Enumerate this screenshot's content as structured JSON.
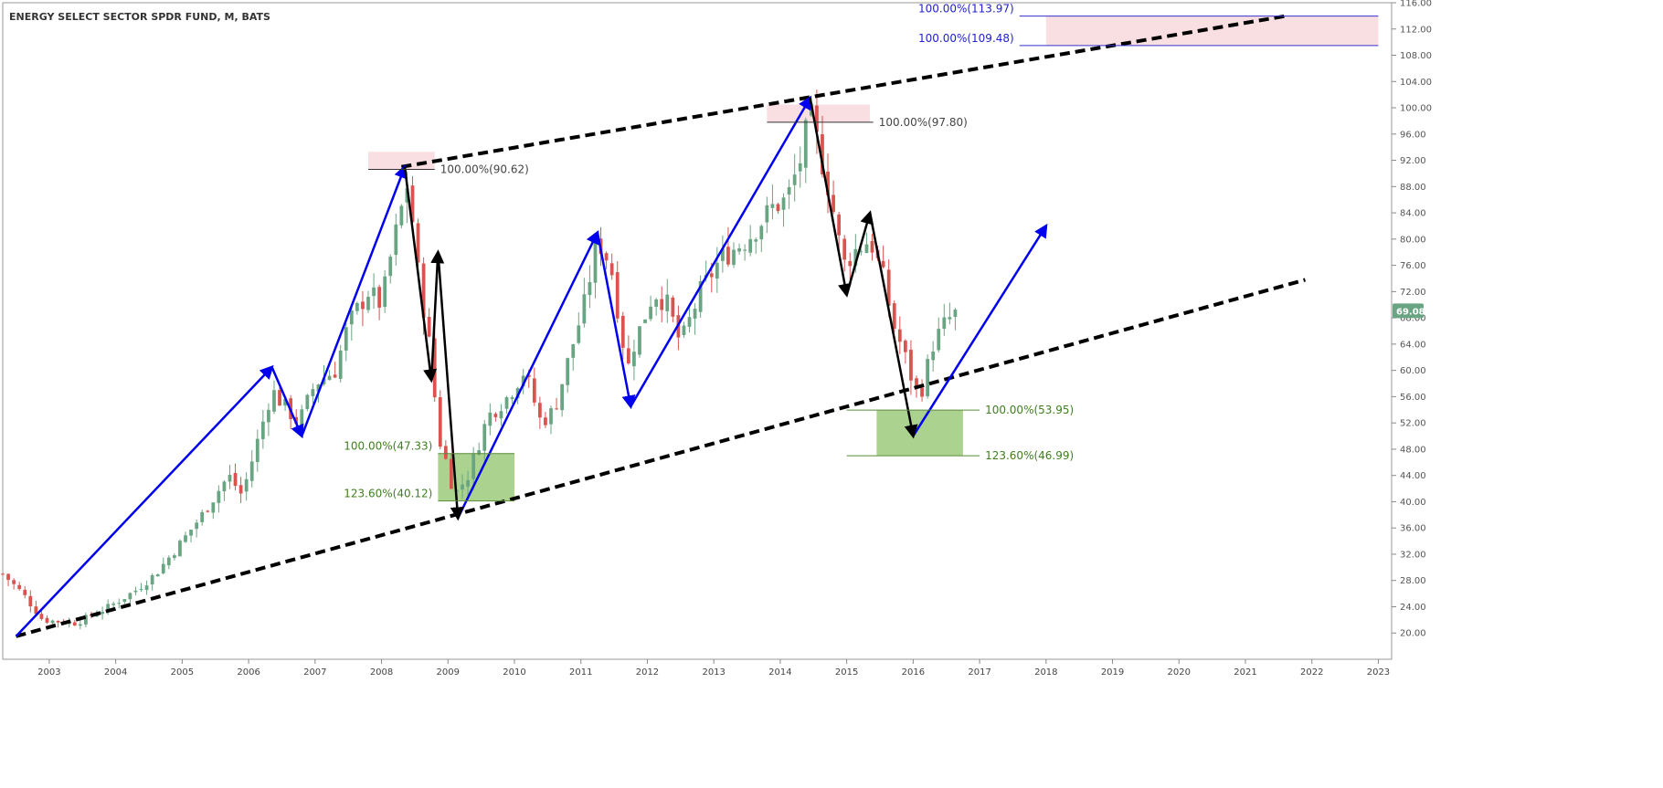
{
  "title": "ENERGY SELECT SECTOR SPDR FUND, M, BATS",
  "colors": {
    "up": "#6aa583",
    "down": "#d9534f",
    "wave_blue": "#0000ee",
    "wave_black": "#000000",
    "trend": "#000000",
    "zone_pink": "#f9d9dd",
    "zone_green": "#8fc46a",
    "fib_green_text": "#3f7f1f",
    "fib_blue_text": "#2222cc",
    "fib_dark_text": "#444444",
    "last_price_bg": "#6aa583"
  },
  "chart_data": {
    "type": "candlestick",
    "title": "ENERGY SELECT SECTOR SPDR FUND, M, BATS",
    "interval": "M",
    "exchange": "BATS",
    "x_axis": {
      "type": "time",
      "range": [
        2002.3,
        2023.2
      ],
      "ticks": [
        "2003",
        "2004",
        "2005",
        "2006",
        "2007",
        "2008",
        "2009",
        "2010",
        "2011",
        "2012",
        "2013",
        "2014",
        "2015",
        "2016",
        "2017",
        "2018",
        "2019",
        "2020",
        "2021",
        "2022",
        "2023"
      ]
    },
    "y_axis": {
      "range": [
        16,
        116
      ],
      "position": "right",
      "ticks": [
        "116.00",
        "112.00",
        "108.00",
        "104.00",
        "100.00",
        "96.00",
        "92.00",
        "88.00",
        "84.00",
        "80.00",
        "76.00",
        "72.00",
        "68.00",
        "64.00",
        "60.00",
        "56.00",
        "52.00",
        "48.00",
        "44.00",
        "40.00",
        "36.00",
        "32.00",
        "28.00",
        "24.00",
        "20.00"
      ]
    },
    "last_price": "69.08",
    "anchors": [
      [
        2002.3,
        29.0
      ],
      [
        2002.6,
        26.0
      ],
      [
        2002.9,
        22.0
      ],
      [
        2003.4,
        21.5
      ],
      [
        2003.9,
        24.0
      ],
      [
        2004.3,
        26.5
      ],
      [
        2004.6,
        29.0
      ],
      [
        2005.0,
        34.0
      ],
      [
        2005.3,
        38.0
      ],
      [
        2005.7,
        44.0
      ],
      [
        2005.9,
        41.0
      ],
      [
        2006.1,
        48.0
      ],
      [
        2006.35,
        57.0
      ],
      [
        2006.5,
        55.0
      ],
      [
        2006.75,
        52.0
      ],
      [
        2007.0,
        58.0
      ],
      [
        2007.3,
        60.0
      ],
      [
        2007.5,
        67.0
      ],
      [
        2007.8,
        72.0
      ],
      [
        2008.0,
        70.0
      ],
      [
        2008.15,
        78.0
      ],
      [
        2008.4,
        89.0
      ],
      [
        2008.55,
        75.0
      ],
      [
        2008.75,
        62.0
      ],
      [
        2008.85,
        50.0
      ],
      [
        2008.95,
        47.0
      ],
      [
        2009.1,
        41.0
      ],
      [
        2009.3,
        44.0
      ],
      [
        2009.6,
        53.0
      ],
      [
        2009.9,
        56.0
      ],
      [
        2010.15,
        60.0
      ],
      [
        2010.4,
        52.0
      ],
      [
        2010.6,
        54.0
      ],
      [
        2010.85,
        63.0
      ],
      [
        2011.05,
        70.0
      ],
      [
        2011.25,
        80.0
      ],
      [
        2011.45,
        76.0
      ],
      [
        2011.7,
        60.0
      ],
      [
        2011.8,
        64.0
      ],
      [
        2012.1,
        72.0
      ],
      [
        2012.3,
        70.0
      ],
      [
        2012.5,
        64.0
      ],
      [
        2012.8,
        72.0
      ],
      [
        2013.1,
        77.0
      ],
      [
        2013.5,
        80.0
      ],
      [
        2013.9,
        85.0
      ],
      [
        2014.1,
        86.0
      ],
      [
        2014.3,
        92.0
      ],
      [
        2014.45,
        99.0
      ],
      [
        2014.55,
        95.0
      ],
      [
        2014.75,
        87.0
      ],
      [
        2014.95,
        76.0
      ],
      [
        2015.1,
        78.0
      ],
      [
        2015.35,
        80.0
      ],
      [
        2015.55,
        74.0
      ],
      [
        2015.7,
        67.0
      ],
      [
        2015.85,
        63.0
      ],
      [
        2016.0,
        58.0
      ],
      [
        2016.1,
        56.0
      ],
      [
        2016.3,
        64.0
      ],
      [
        2016.5,
        67.5
      ],
      [
        2016.7,
        69.1
      ]
    ],
    "trendlines": [
      {
        "from": [
          2002.5,
          19.5
        ],
        "to": [
          2021.9,
          73.8
        ]
      },
      {
        "from": [
          2008.3,
          91.0
        ],
        "to": [
          2021.6,
          113.97
        ]
      }
    ],
    "waves_blue": [
      [
        [
          2002.5,
          19.5
        ],
        [
          2006.35,
          60.5
        ],
        [
          2006.8,
          50.0
        ],
        [
          2008.35,
          91.0
        ]
      ],
      [
        [
          2009.15,
          37.5
        ],
        [
          2011.25,
          81.0
        ],
        [
          2011.75,
          54.5
        ],
        [
          2014.45,
          101.5
        ]
      ],
      [
        [
          2016.0,
          50.0
        ],
        [
          2018.0,
          82.0
        ]
      ]
    ],
    "waves_black": [
      [
        [
          2008.35,
          91.0
        ],
        [
          2008.75,
          58.5
        ],
        [
          2008.85,
          78.0
        ],
        [
          2009.15,
          37.5
        ]
      ],
      [
        [
          2014.45,
          101.5
        ],
        [
          2015.0,
          71.5
        ],
        [
          2015.35,
          84.0
        ],
        [
          2016.0,
          50.0
        ]
      ]
    ],
    "fib_levels": [
      {
        "label": "100.00%(113.97)",
        "value": 113.97,
        "x0": 2017.6,
        "x1": 2023.0,
        "color": "blue",
        "label_side": "left"
      },
      {
        "label": "100.00%(109.48)",
        "value": 109.48,
        "x0": 2017.6,
        "x1": 2023.0,
        "color": "blue",
        "label_side": "left"
      },
      {
        "label": "100.00%(97.80)",
        "value": 97.8,
        "x0": 2013.8,
        "x1": 2015.4,
        "color": "dark",
        "label_side": "right"
      },
      {
        "label": "100.00%(90.62)",
        "value": 90.62,
        "x0": 2007.8,
        "x1": 2008.8,
        "color": "dark",
        "label_side": "right"
      },
      {
        "label": "100.00%(53.95)",
        "value": 53.95,
        "x0": 2015.0,
        "x1": 2017.0,
        "color": "green",
        "label_side": "right"
      },
      {
        "label": "123.60%(46.99)",
        "value": 46.99,
        "x0": 2015.0,
        "x1": 2017.0,
        "color": "green",
        "label_side": "right"
      },
      {
        "label": "100.00%(47.33)",
        "value": 47.33,
        "x0": 2008.85,
        "x1": 2010.0,
        "color": "green",
        "label_side": "left"
      },
      {
        "label": "123.60%(40.12)",
        "value": 40.12,
        "x0": 2008.85,
        "x1": 2010.0,
        "color": "green",
        "label_side": "left"
      }
    ],
    "zones": [
      {
        "kind": "pink",
        "x0": 2007.8,
        "x1": 2008.8,
        "y0": 90.62,
        "y1": 93.3
      },
      {
        "kind": "pink",
        "x0": 2013.8,
        "x1": 2015.35,
        "y0": 97.8,
        "y1": 100.5
      },
      {
        "kind": "pink",
        "x0": 2018.0,
        "x1": 2023.0,
        "y0": 109.48,
        "y1": 113.97
      },
      {
        "kind": "green",
        "x0": 2008.85,
        "x1": 2010.0,
        "y0": 40.12,
        "y1": 47.33
      },
      {
        "kind": "green",
        "x0": 2015.45,
        "x1": 2016.75,
        "y0": 46.99,
        "y1": 53.95
      }
    ]
  }
}
